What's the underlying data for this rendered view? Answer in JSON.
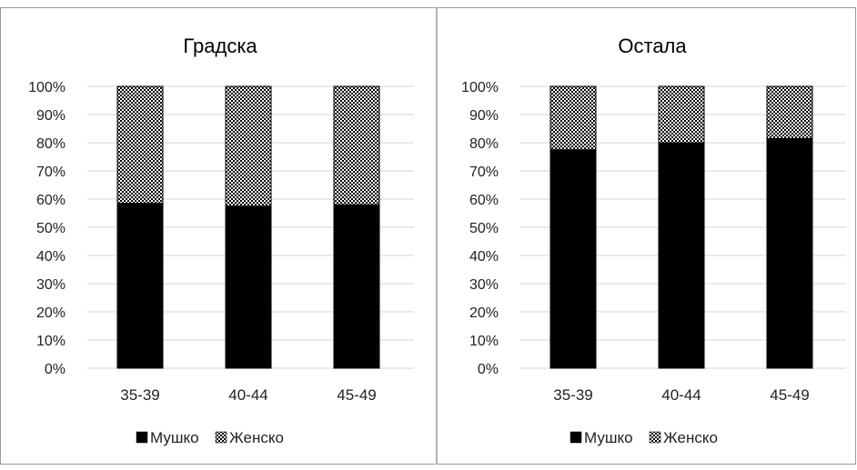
{
  "chart_data": [
    {
      "type": "bar",
      "stacked": true,
      "percent": true,
      "title": "Градска",
      "categories": [
        "35-39",
        "40-44",
        "45-49"
      ],
      "series": [
        {
          "name": "Мушко",
          "values": [
            58.5,
            57.5,
            58.0
          ],
          "color": "#000000",
          "pattern": "solid"
        },
        {
          "name": "Женско",
          "values": [
            41.5,
            42.5,
            42.0
          ],
          "color": "#7a7a7a",
          "pattern": "checker"
        }
      ],
      "y_ticks": [
        "0%",
        "10%",
        "20%",
        "30%",
        "40%",
        "50%",
        "60%",
        "70%",
        "80%",
        "90%",
        "100%"
      ],
      "ylim": [
        0,
        100
      ],
      "grid": true,
      "legend": "bottom"
    },
    {
      "type": "bar",
      "stacked": true,
      "percent": true,
      "title": "Остала",
      "categories": [
        "35-39",
        "40-44",
        "45-49"
      ],
      "series": [
        {
          "name": "Мушко",
          "values": [
            77.5,
            80.0,
            81.5
          ],
          "color": "#000000",
          "pattern": "solid"
        },
        {
          "name": "Женско",
          "values": [
            22.5,
            20.0,
            18.5
          ],
          "color": "#7a7a7a",
          "pattern": "checker"
        }
      ],
      "y_ticks": [
        "0%",
        "10%",
        "20%",
        "30%",
        "40%",
        "50%",
        "60%",
        "70%",
        "80%",
        "90%",
        "100%"
      ],
      "ylim": [
        0,
        100
      ],
      "grid": true,
      "legend": "bottom"
    }
  ]
}
